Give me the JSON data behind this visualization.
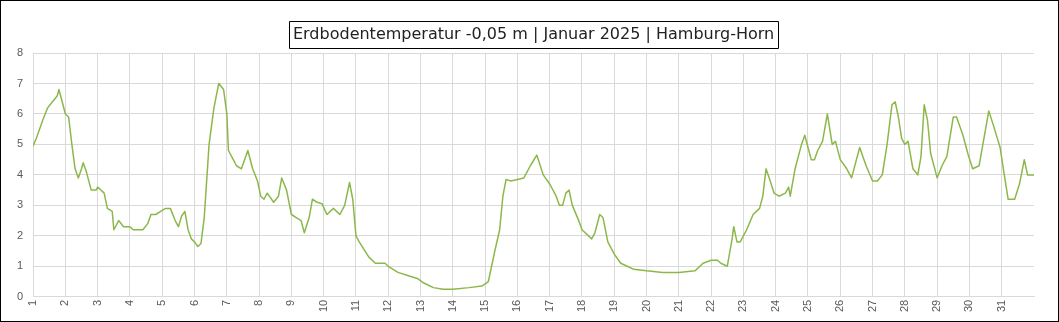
{
  "chart_data": {
    "type": "line",
    "title": "Erdbodentemperatur -0,05 m | Januar 2025 | Hamburg-Horn",
    "xlim": [
      1,
      32
    ],
    "xticks": [
      1,
      2,
      3,
      4,
      5,
      6,
      7,
      8,
      9,
      10,
      11,
      12,
      13,
      14,
      15,
      16,
      17,
      18,
      19,
      20,
      21,
      22,
      23,
      24,
      25,
      26,
      27,
      28,
      29,
      30,
      31
    ],
    "ylim": [
      0,
      8
    ],
    "yticks": [
      0,
      1,
      2,
      3,
      4,
      5,
      6,
      7,
      8
    ],
    "grid": true,
    "legend": false,
    "marker": "none",
    "line_style": "solid",
    "series": [
      {
        "color": "#8cb84a",
        "x": [
          1.0,
          1.1,
          1.3,
          1.45,
          1.6,
          1.75,
          1.8,
          1.9,
          2.0,
          2.1,
          2.2,
          2.3,
          2.4,
          2.5,
          2.55,
          2.65,
          2.8,
          2.95,
          3.0,
          3.2,
          3.3,
          3.45,
          3.5,
          3.65,
          3.8,
          4.0,
          4.1,
          4.4,
          4.55,
          4.65,
          4.8,
          4.95,
          5.1,
          5.25,
          5.4,
          5.5,
          5.6,
          5.7,
          5.8,
          5.9,
          6.0,
          6.1,
          6.2,
          6.3,
          6.45,
          6.6,
          6.75,
          6.9,
          7.0,
          7.05,
          7.2,
          7.3,
          7.45,
          7.55,
          7.65,
          7.8,
          7.95,
          8.05,
          8.15,
          8.25,
          8.45,
          8.6,
          8.7,
          8.85,
          9.0,
          9.15,
          9.3,
          9.4,
          9.55,
          9.65,
          9.8,
          9.95,
          10.1,
          10.3,
          10.5,
          10.65,
          10.8,
          10.9,
          11.0,
          11.1,
          11.4,
          11.6,
          11.9,
          12.0,
          12.3,
          12.6,
          12.9,
          13.1,
          13.4,
          13.7,
          14.0,
          14.5,
          14.9,
          15.1,
          15.3,
          15.45,
          15.55,
          15.65,
          15.8,
          16.0,
          16.2,
          16.4,
          16.6,
          16.8,
          17.0,
          17.2,
          17.3,
          17.4,
          17.5,
          17.6,
          17.7,
          17.9,
          18.0,
          18.3,
          18.4,
          18.55,
          18.65,
          18.8,
          19.0,
          19.2,
          19.4,
          19.6,
          20.0,
          20.5,
          21.0,
          21.5,
          21.75,
          22.0,
          22.2,
          22.3,
          22.5,
          22.65,
          22.7,
          22.8,
          22.9,
          23.1,
          23.3,
          23.5,
          23.6,
          23.7,
          23.8,
          23.95,
          24.1,
          24.3,
          24.4,
          24.45,
          24.6,
          24.8,
          24.9,
          25.1,
          25.2,
          25.3,
          25.45,
          25.6,
          25.75,
          25.85,
          26.0,
          26.2,
          26.35,
          26.5,
          26.6,
          26.8,
          27.0,
          27.15,
          27.3,
          27.45,
          27.6,
          27.7,
          27.8,
          27.9,
          28.0,
          28.1,
          28.25,
          28.4,
          28.5,
          28.6,
          28.7,
          28.8,
          29.0,
          29.15,
          29.3,
          29.5,
          29.6,
          29.8,
          29.95,
          30.1,
          30.3,
          30.5,
          30.6,
          30.75,
          30.95,
          31.05,
          31.2,
          31.4,
          31.55,
          31.7,
          31.8,
          32.0
        ],
        "values": [
          4.95,
          5.2,
          5.8,
          6.2,
          6.4,
          6.6,
          6.8,
          6.4,
          6.0,
          5.9,
          5.0,
          4.2,
          3.9,
          4.2,
          4.4,
          4.1,
          3.5,
          3.5,
          3.6,
          3.4,
          2.9,
          2.8,
          2.2,
          2.5,
          2.3,
          2.3,
          2.2,
          2.2,
          2.4,
          2.7,
          2.7,
          2.8,
          2.9,
          2.9,
          2.5,
          2.3,
          2.65,
          2.8,
          2.2,
          1.9,
          1.8,
          1.65,
          1.75,
          2.6,
          5.0,
          6.2,
          7.0,
          6.8,
          6.0,
          4.8,
          4.5,
          4.3,
          4.2,
          4.5,
          4.8,
          4.2,
          3.8,
          3.3,
          3.2,
          3.4,
          3.1,
          3.3,
          3.9,
          3.5,
          2.7,
          2.6,
          2.5,
          2.1,
          2.6,
          3.2,
          3.1,
          3.05,
          2.7,
          2.9,
          2.7,
          3.0,
          3.75,
          3.2,
          2.0,
          1.8,
          1.3,
          1.1,
          1.1,
          1.0,
          0.8,
          0.7,
          0.6,
          0.45,
          0.3,
          0.25,
          0.25,
          0.3,
          0.35,
          0.5,
          1.5,
          2.2,
          3.3,
          3.85,
          3.8,
          3.85,
          3.9,
          4.3,
          4.65,
          4.0,
          3.7,
          3.3,
          3.0,
          3.0,
          3.4,
          3.5,
          3.0,
          2.5,
          2.2,
          1.9,
          2.1,
          2.7,
          2.6,
          1.8,
          1.4,
          1.1,
          1.0,
          0.9,
          0.85,
          0.8,
          0.8,
          0.85,
          1.1,
          1.2,
          1.2,
          1.1,
          1.0,
          1.9,
          2.3,
          1.8,
          1.8,
          2.2,
          2.7,
          2.9,
          3.3,
          4.2,
          3.9,
          3.4,
          3.3,
          3.4,
          3.6,
          3.3,
          4.2,
          5.0,
          5.3,
          4.5,
          4.5,
          4.8,
          5.1,
          6.0,
          5.0,
          5.1,
          4.5,
          4.2,
          3.9,
          4.5,
          4.9,
          4.3,
          3.8,
          3.8,
          4.0,
          5.0,
          6.3,
          6.4,
          5.9,
          5.2,
          5.0,
          5.1,
          4.2,
          4.0,
          4.6,
          6.3,
          5.8,
          4.7,
          3.9,
          4.3,
          4.6,
          5.9,
          5.9,
          5.3,
          4.7,
          4.2,
          4.3,
          5.5,
          6.1,
          5.6,
          4.9,
          4.2,
          3.2,
          3.2,
          3.7,
          4.5,
          4.0,
          4.0
        ]
      }
    ]
  }
}
